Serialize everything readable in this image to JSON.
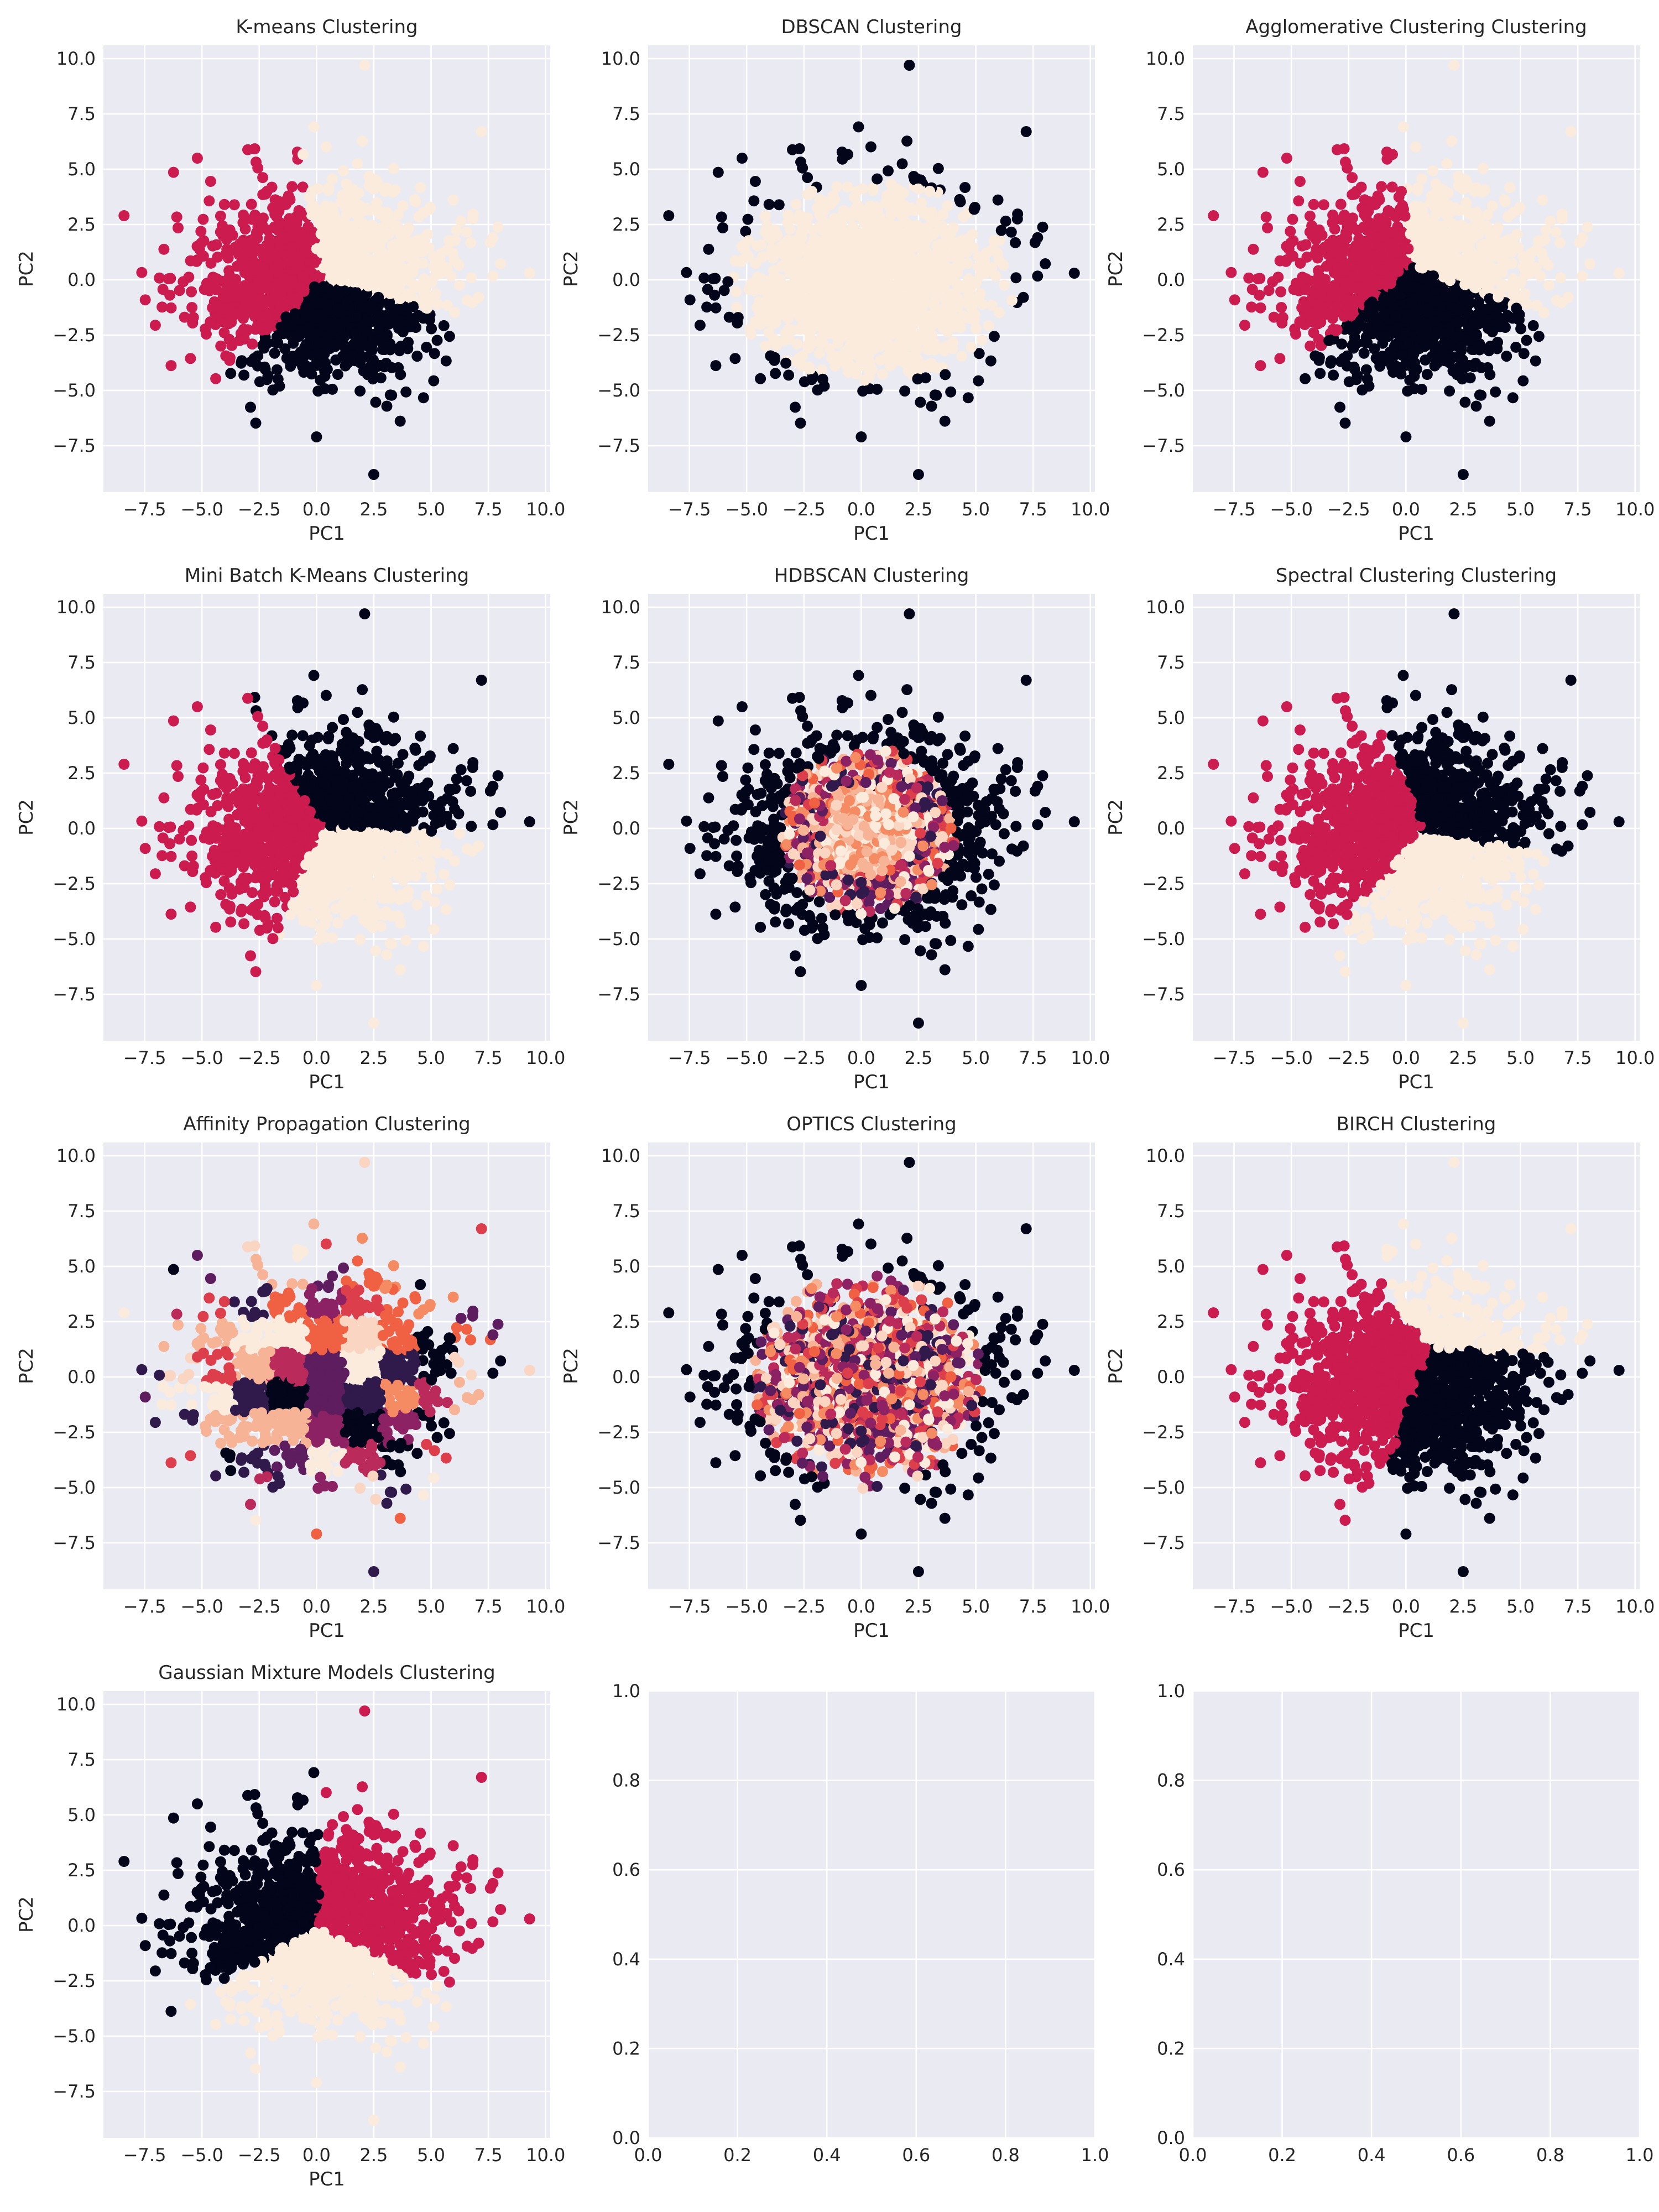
{
  "figure": {
    "background": "#ffffff",
    "axes_facecolor": "#eaeaf2",
    "grid_color": "#ffffff",
    "text_color": "#262626",
    "palette": [
      "#03051a",
      "#cb1b4f",
      "#faebdd"
    ],
    "palette_multi": [
      "#03051a",
      "#2f1a4b",
      "#5d1d5e",
      "#8c2263",
      "#ba2a5b",
      "#dd3e4b",
      "#f06043",
      "#f58b63",
      "#f7b396",
      "#f9d5c2",
      "#faebdd"
    ]
  },
  "chart_data": [
    {
      "type": "scatter",
      "title": "K-means Clustering",
      "xlabel": "PC1",
      "ylabel": "PC2",
      "xlim": [
        -9.3,
        10.2
      ],
      "ylim": [
        -9.6,
        10.6
      ],
      "xticks": [
        "−7.5",
        "−5.0",
        "−2.5",
        "0.0",
        "2.5",
        "5.0",
        "7.5",
        "10.0"
      ],
      "xtick_values": [
        -7.5,
        -5.0,
        -2.5,
        0.0,
        2.5,
        5.0,
        7.5,
        10.0
      ],
      "yticks": [
        "−7.5",
        "−5.0",
        "−2.5",
        "0.0",
        "2.5",
        "5.0",
        "7.5",
        "10.0"
      ],
      "ytick_values": [
        -7.5,
        -5.0,
        -2.5,
        0.0,
        2.5,
        5.0,
        7.5,
        10.0
      ],
      "grid": true,
      "n_clusters": 3,
      "regions": [
        {
          "cluster": 1,
          "label": "left",
          "color": "#cb1b4f",
          "center": [
            -2.6,
            0.9
          ]
        },
        {
          "cluster": 2,
          "label": "upper-right",
          "color": "#faebdd",
          "center": [
            2.6,
            1.8
          ]
        },
        {
          "cluster": 0,
          "label": "lower",
          "color": "#03051a",
          "center": [
            1.2,
            -2.8
          ]
        }
      ],
      "notable_points": [
        [
          2.1,
          9.7
        ],
        [
          -8.4,
          2.9
        ],
        [
          9.3,
          0.3
        ],
        [
          2.5,
          -8.8
        ],
        [
          0.0,
          -7.1
        ],
        [
          7.2,
          6.7
        ],
        [
          -5.2,
          5.5
        ]
      ]
    },
    {
      "type": "scatter",
      "title": "DBSCAN Clustering",
      "xlabel": "PC1",
      "ylabel": "PC2",
      "xlim": [
        -9.3,
        10.2
      ],
      "ylim": [
        -9.6,
        10.6
      ],
      "xticks": [
        "−7.5",
        "−5.0",
        "−2.5",
        "0.0",
        "2.5",
        "5.0",
        "7.5",
        "10.0"
      ],
      "xtick_values": [
        -7.5,
        -5.0,
        -2.5,
        0.0,
        2.5,
        5.0,
        7.5,
        10.0
      ],
      "yticks": [
        "−7.5",
        "−5.0",
        "−2.5",
        "0.0",
        "2.5",
        "5.0",
        "7.5",
        "10.0"
      ],
      "ytick_values": [
        -7.5,
        -5.0,
        -2.5,
        0.0,
        2.5,
        5.0,
        7.5,
        10.0
      ],
      "grid": true,
      "n_clusters": 2,
      "regions": [
        {
          "cluster": 1,
          "label": "core",
          "color": "#faebdd",
          "center": [
            0.5,
            0.0
          ]
        },
        {
          "cluster": 0,
          "label": "noise",
          "color": "#03051a",
          "center": [
            0.0,
            0.0
          ]
        }
      ],
      "notable_points": [
        [
          2.1,
          9.7
        ],
        [
          -8.4,
          2.9
        ],
        [
          9.3,
          0.3
        ],
        [
          2.5,
          -8.8
        ],
        [
          0.0,
          -7.1
        ],
        [
          7.2,
          6.7
        ],
        [
          -5.2,
          5.5
        ]
      ]
    },
    {
      "type": "scatter",
      "title": "Agglomerative Clustering Clustering",
      "xlabel": "PC1",
      "ylabel": "PC2",
      "xlim": [
        -9.3,
        10.2
      ],
      "ylim": [
        -9.6,
        10.6
      ],
      "xticks": [
        "−7.5",
        "−5.0",
        "−2.5",
        "0.0",
        "2.5",
        "5.0",
        "7.5",
        "10.0"
      ],
      "xtick_values": [
        -7.5,
        -5.0,
        -2.5,
        0.0,
        2.5,
        5.0,
        7.5,
        10.0
      ],
      "yticks": [
        "−7.5",
        "−5.0",
        "−2.5",
        "0.0",
        "2.5",
        "5.0",
        "7.5",
        "10.0"
      ],
      "ytick_values": [
        -7.5,
        -5.0,
        -2.5,
        0.0,
        2.5,
        5.0,
        7.5,
        10.0
      ],
      "grid": true,
      "n_clusters": 3,
      "regions": [
        {
          "cluster": 1,
          "label": "left",
          "color": "#cb1b4f",
          "center": [
            -2.6,
            1.6
          ]
        },
        {
          "cluster": 2,
          "label": "upper-right",
          "color": "#faebdd",
          "center": [
            2.8,
            2.2
          ]
        },
        {
          "cluster": 0,
          "label": "lower",
          "color": "#03051a",
          "center": [
            1.0,
            -2.3
          ]
        }
      ],
      "notable_points": [
        [
          2.1,
          9.7
        ],
        [
          -8.4,
          2.9
        ],
        [
          9.3,
          0.3
        ],
        [
          2.5,
          -8.8
        ],
        [
          0.0,
          -7.1
        ],
        [
          7.2,
          6.7
        ],
        [
          -5.2,
          5.5
        ]
      ]
    },
    {
      "type": "scatter",
      "title": "Mini Batch K-Means Clustering",
      "xlabel": "PC1",
      "ylabel": "PC2",
      "xlim": [
        -9.3,
        10.2
      ],
      "ylim": [
        -9.6,
        10.6
      ],
      "xticks": [
        "−7.5",
        "−5.0",
        "−2.5",
        "0.0",
        "2.5",
        "5.0",
        "7.5",
        "10.0"
      ],
      "xtick_values": [
        -7.5,
        -5.0,
        -2.5,
        0.0,
        2.5,
        5.0,
        7.5,
        10.0
      ],
      "yticks": [
        "−7.5",
        "−5.0",
        "−2.5",
        "0.0",
        "2.5",
        "5.0",
        "7.5",
        "10.0"
      ],
      "ytick_values": [
        -7.5,
        -5.0,
        -2.5,
        0.0,
        2.5,
        5.0,
        7.5,
        10.0
      ],
      "grid": true,
      "n_clusters": 3,
      "regions": [
        {
          "cluster": 1,
          "label": "left",
          "color": "#cb1b4f",
          "center": [
            -2.7,
            -0.4
          ]
        },
        {
          "cluster": 0,
          "label": "upper-right",
          "color": "#03051a",
          "center": [
            2.2,
            2.3
          ]
        },
        {
          "cluster": 2,
          "label": "lower-right",
          "color": "#faebdd",
          "center": [
            2.0,
            -2.3
          ]
        }
      ],
      "notable_points": [
        [
          2.1,
          9.7
        ],
        [
          -8.4,
          2.9
        ],
        [
          9.3,
          0.3
        ],
        [
          2.5,
          -8.8
        ],
        [
          0.0,
          -7.1
        ],
        [
          7.2,
          6.7
        ],
        [
          -5.2,
          5.5
        ]
      ]
    },
    {
      "type": "scatter",
      "title": "HDBSCAN Clustering",
      "xlabel": "PC1",
      "ylabel": "PC2",
      "xlim": [
        -9.3,
        10.2
      ],
      "ylim": [
        -9.6,
        10.6
      ],
      "xticks": [
        "−7.5",
        "−5.0",
        "−2.5",
        "0.0",
        "2.5",
        "5.0",
        "7.5",
        "10.0"
      ],
      "xtick_values": [
        -7.5,
        -5.0,
        -2.5,
        0.0,
        2.5,
        5.0,
        7.5,
        10.0
      ],
      "yticks": [
        "−7.5",
        "−5.0",
        "−2.5",
        "0.0",
        "2.5",
        "5.0",
        "7.5",
        "10.0"
      ],
      "ytick_values": [
        -7.5,
        -5.0,
        -2.5,
        0.0,
        2.5,
        5.0,
        7.5,
        10.0
      ],
      "grid": true,
      "n_clusters": 11,
      "regions": [
        {
          "cluster": 0,
          "label": "noise (outer)",
          "color": "#03051a",
          "center": [
            0.0,
            0.0
          ]
        },
        {
          "cluster": "many",
          "label": "small core clusters",
          "color": "mixed",
          "center": [
            0.0,
            0.0
          ]
        }
      ],
      "notable_points": [
        [
          2.1,
          9.7
        ],
        [
          -8.4,
          2.9
        ],
        [
          9.3,
          0.3
        ],
        [
          2.5,
          -8.8
        ],
        [
          0.0,
          -7.1
        ],
        [
          7.2,
          6.7
        ],
        [
          -5.2,
          5.5
        ]
      ]
    },
    {
      "type": "scatter",
      "title": "Spectral Clustering Clustering",
      "xlabel": "PC1",
      "ylabel": "PC2",
      "xlim": [
        -9.3,
        10.2
      ],
      "ylim": [
        -9.6,
        10.6
      ],
      "xticks": [
        "−7.5",
        "−5.0",
        "−2.5",
        "0.0",
        "2.5",
        "5.0",
        "7.5",
        "10.0"
      ],
      "xtick_values": [
        -7.5,
        -5.0,
        -2.5,
        0.0,
        2.5,
        5.0,
        7.5,
        10.0
      ],
      "yticks": [
        "−7.5",
        "−5.0",
        "−2.5",
        "0.0",
        "2.5",
        "5.0",
        "7.5",
        "10.0"
      ],
      "ytick_values": [
        -7.5,
        -5.0,
        -2.5,
        0.0,
        2.5,
        5.0,
        7.5,
        10.0
      ],
      "grid": true,
      "n_clusters": 3,
      "regions": [
        {
          "cluster": 1,
          "label": "left",
          "color": "#cb1b4f",
          "center": [
            -2.3,
            0.3
          ]
        },
        {
          "cluster": 0,
          "label": "upper-right",
          "color": "#03051a",
          "center": [
            2.8,
            2.2
          ]
        },
        {
          "cluster": 2,
          "label": "lower",
          "color": "#faebdd",
          "center": [
            1.8,
            -3.0
          ]
        }
      ],
      "notable_points": [
        [
          2.1,
          9.7
        ],
        [
          -8.4,
          2.9
        ],
        [
          9.3,
          0.3
        ],
        [
          2.5,
          -8.8
        ],
        [
          0.0,
          -7.1
        ],
        [
          7.2,
          6.7
        ],
        [
          -5.2,
          5.5
        ]
      ]
    },
    {
      "type": "scatter",
      "title": "Affinity Propagation Clustering",
      "xlabel": "PC1",
      "ylabel": "PC2",
      "xlim": [
        -9.3,
        10.2
      ],
      "ylim": [
        -9.6,
        10.6
      ],
      "xticks": [
        "−7.5",
        "−5.0",
        "−2.5",
        "0.0",
        "2.5",
        "5.0",
        "7.5",
        "10.0"
      ],
      "xtick_values": [
        -7.5,
        -5.0,
        -2.5,
        0.0,
        2.5,
        5.0,
        7.5,
        10.0
      ],
      "yticks": [
        "−7.5",
        "−5.0",
        "−2.5",
        "0.0",
        "2.5",
        "5.0",
        "7.5",
        "10.0"
      ],
      "ytick_values": [
        -7.5,
        -5.0,
        -2.5,
        0.0,
        2.5,
        5.0,
        7.5,
        10.0
      ],
      "grid": true,
      "n_clusters": 11,
      "regions": [
        {
          "cluster": "many",
          "label": "patchwork of small clusters",
          "color": "mixed",
          "center": [
            0.0,
            0.0
          ]
        }
      ],
      "notable_points": [
        [
          2.1,
          9.7
        ],
        [
          -8.4,
          2.9
        ],
        [
          9.3,
          0.3
        ],
        [
          2.5,
          -8.8
        ],
        [
          0.0,
          -7.1
        ],
        [
          7.2,
          6.7
        ],
        [
          -5.2,
          5.5
        ]
      ]
    },
    {
      "type": "scatter",
      "title": "OPTICS Clustering",
      "xlabel": "PC1",
      "ylabel": "PC2",
      "xlim": [
        -9.3,
        10.2
      ],
      "ylim": [
        -9.6,
        10.6
      ],
      "xticks": [
        "−7.5",
        "−5.0",
        "−2.5",
        "0.0",
        "2.5",
        "5.0",
        "7.5",
        "10.0"
      ],
      "xtick_values": [
        -7.5,
        -5.0,
        -2.5,
        0.0,
        2.5,
        5.0,
        7.5,
        10.0
      ],
      "yticks": [
        "−7.5",
        "−5.0",
        "−2.5",
        "0.0",
        "2.5",
        "5.0",
        "7.5",
        "10.0"
      ],
      "ytick_values": [
        -7.5,
        -5.0,
        -2.5,
        0.0,
        2.5,
        5.0,
        7.5,
        10.0
      ],
      "grid": true,
      "n_clusters": 11,
      "regions": [
        {
          "cluster": 0,
          "label": "noise (outer)",
          "color": "#03051a",
          "center": [
            0.0,
            0.0
          ]
        },
        {
          "cluster": "many",
          "label": "mixed core clusters",
          "color": "mixed",
          "center": [
            0.0,
            0.0
          ]
        }
      ],
      "notable_points": [
        [
          2.1,
          9.7
        ],
        [
          -8.4,
          2.9
        ],
        [
          9.3,
          0.3
        ],
        [
          2.5,
          -8.8
        ],
        [
          0.0,
          -7.1
        ],
        [
          7.2,
          6.7
        ],
        [
          -5.2,
          5.5
        ]
      ]
    },
    {
      "type": "scatter",
      "title": "BIRCH Clustering",
      "xlabel": "PC1",
      "ylabel": "PC2",
      "xlim": [
        -9.3,
        10.2
      ],
      "ylim": [
        -9.6,
        10.6
      ],
      "xticks": [
        "−7.5",
        "−5.0",
        "−2.5",
        "0.0",
        "2.5",
        "5.0",
        "7.5",
        "10.0"
      ],
      "xtick_values": [
        -7.5,
        -5.0,
        -2.5,
        0.0,
        2.5,
        5.0,
        7.5,
        10.0
      ],
      "yticks": [
        "−7.5",
        "−5.0",
        "−2.5",
        "0.0",
        "2.5",
        "5.0",
        "7.5",
        "10.0"
      ],
      "ytick_values": [
        -7.5,
        -5.0,
        -2.5,
        0.0,
        2.5,
        5.0,
        7.5,
        10.0
      ],
      "grid": true,
      "n_clusters": 3,
      "regions": [
        {
          "cluster": 1,
          "label": "left",
          "color": "#cb1b4f",
          "center": [
            -2.0,
            0.3
          ]
        },
        {
          "cluster": 2,
          "label": "upper-right",
          "color": "#faebdd",
          "center": [
            3.0,
            3.8
          ]
        },
        {
          "cluster": 0,
          "label": "lower-right",
          "color": "#03051a",
          "center": [
            2.8,
            -1.3
          ]
        }
      ],
      "notable_points": [
        [
          2.1,
          9.7
        ],
        [
          -8.4,
          2.9
        ],
        [
          9.3,
          0.3
        ],
        [
          2.5,
          -8.8
        ],
        [
          0.0,
          -7.1
        ],
        [
          7.2,
          6.7
        ],
        [
          -5.2,
          5.5
        ]
      ]
    },
    {
      "type": "scatter",
      "title": "Gaussian Mixture Models Clustering",
      "xlabel": "PC1",
      "ylabel": "PC2",
      "xlim": [
        -9.3,
        10.2
      ],
      "ylim": [
        -9.6,
        10.6
      ],
      "xticks": [
        "−7.5",
        "−5.0",
        "−2.5",
        "0.0",
        "2.5",
        "5.0",
        "7.5",
        "10.0"
      ],
      "xtick_values": [
        -7.5,
        -5.0,
        -2.5,
        0.0,
        2.5,
        5.0,
        7.5,
        10.0
      ],
      "yticks": [
        "−7.5",
        "−5.0",
        "−2.5",
        "0.0",
        "2.5",
        "5.0",
        "7.5",
        "10.0"
      ],
      "ytick_values": [
        -7.5,
        -5.0,
        -2.5,
        0.0,
        2.5,
        5.0,
        7.5,
        10.0
      ],
      "grid": true,
      "n_clusters": 3,
      "regions": [
        {
          "cluster": 0,
          "label": "left",
          "color": "#03051a",
          "center": [
            -2.6,
            1.6
          ]
        },
        {
          "cluster": 1,
          "label": "right",
          "color": "#cb1b4f",
          "center": [
            2.8,
            1.6
          ]
        },
        {
          "cluster": 2,
          "label": "lower",
          "color": "#faebdd",
          "center": [
            0.3,
            -3.2
          ]
        }
      ],
      "notable_points": [
        [
          2.1,
          9.7
        ],
        [
          -8.4,
          2.9
        ],
        [
          9.3,
          0.3
        ],
        [
          2.5,
          -8.8
        ],
        [
          0.0,
          -7.1
        ],
        [
          7.2,
          6.7
        ],
        [
          -5.2,
          5.5
        ]
      ]
    },
    {
      "type": "scatter",
      "title": "",
      "xlabel": "",
      "ylabel": "",
      "xlim": [
        0,
        1
      ],
      "ylim": [
        0,
        1
      ],
      "xticks": [
        "0.0",
        "0.2",
        "0.4",
        "0.6",
        "0.8",
        "1.0"
      ],
      "xtick_values": [
        0.0,
        0.2,
        0.4,
        0.6,
        0.8,
        1.0
      ],
      "yticks": [
        "0.0",
        "0.2",
        "0.4",
        "0.6",
        "0.8",
        "1.0"
      ],
      "ytick_values": [
        0.0,
        0.2,
        0.4,
        0.6,
        0.8,
        1.0
      ],
      "grid": true,
      "empty": true
    },
    {
      "type": "scatter",
      "title": "",
      "xlabel": "",
      "ylabel": "",
      "xlim": [
        0,
        1
      ],
      "ylim": [
        0,
        1
      ],
      "xticks": [
        "0.0",
        "0.2",
        "0.4",
        "0.6",
        "0.8",
        "1.0"
      ],
      "xtick_values": [
        0.0,
        0.2,
        0.4,
        0.6,
        0.8,
        1.0
      ],
      "yticks": [
        "0.0",
        "0.2",
        "0.4",
        "0.6",
        "0.8",
        "1.0"
      ],
      "ytick_values": [
        0.0,
        0.2,
        0.4,
        0.6,
        0.8,
        1.0
      ],
      "grid": true,
      "empty": true
    }
  ]
}
